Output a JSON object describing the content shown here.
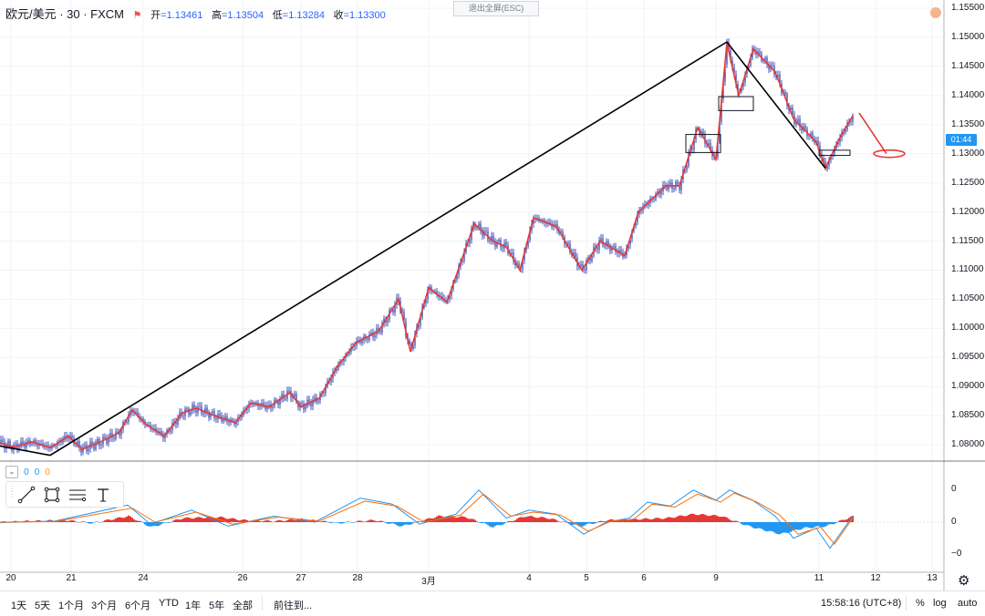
{
  "header": {
    "symbol": "欧元/美元 · 30 · FXCM",
    "flag": "⚑",
    "ohlc": [
      {
        "label": "开",
        "value": "=1.13461"
      },
      {
        "label": "高",
        "value": "=1.13504"
      },
      {
        "label": "低",
        "value": "=1.13284"
      },
      {
        "label": "收",
        "value": "=1.13300"
      }
    ]
  },
  "exit_fullscreen": "退出全屏(ESC)",
  "price_axis": [
    "1.15500",
    "1.15000",
    "1.14500",
    "1.14000",
    "1.13500",
    "1.13000",
    "1.12500",
    "1.12000",
    "1.11500",
    "1.11000",
    "1.10500",
    "1.10000",
    "1.09500",
    "1.09000",
    "1.08500",
    "1.08000"
  ],
  "price_badge": "01:44",
  "indicator": {
    "values": [
      "0",
      "0",
      "0"
    ],
    "axis": [
      "0",
      "0",
      "−0"
    ]
  },
  "toolbar_icons": [
    "trend-line-icon",
    "rectangle-icon",
    "fib-icon",
    "text-icon"
  ],
  "date_axis": [
    "20",
    "21",
    "24",
    "26",
    "27",
    "28",
    "3月",
    "4",
    "5",
    "6",
    "9",
    "11",
    "12",
    "13"
  ],
  "bottom_bar": {
    "ranges": [
      "1天",
      "5天",
      "1个月",
      "3个月",
      "6个月",
      "YTD",
      "1年",
      "5年",
      "全部"
    ],
    "goto": "前往到...",
    "time": "15:58:16 (UTC+8)",
    "percent": "%",
    "log": "log",
    "auto": "auto"
  },
  "colors": {
    "accent": "#2196f3",
    "zigzag": "#e53935",
    "trend": "#000000",
    "candles": "#3f51b5",
    "hist_pos": "#e53935",
    "hist_neg": "#2196f3"
  },
  "chart_data": {
    "type": "line",
    "title": "欧元/美元 · 30 · FXCM",
    "ylim": [
      1.0772,
      1.1564
    ],
    "y_ticks": [
      1.155,
      1.15,
      1.145,
      1.14,
      1.135,
      1.13,
      1.125,
      1.12,
      1.115,
      1.11,
      1.105,
      1.1,
      1.095,
      1.09,
      1.085,
      1.08
    ],
    "x_labels": [
      "20",
      "21",
      "24",
      "26",
      "27",
      "28",
      "3月",
      "4",
      "5",
      "6",
      "9",
      "11",
      "12",
      "13"
    ],
    "grid": true,
    "series": [
      {
        "values": [
          [
            0,
            1.0803
          ],
          [
            15,
            1.0796
          ],
          [
            35,
            1.0805
          ],
          [
            55,
            1.0795
          ],
          [
            75,
            1.0815
          ],
          [
            90,
            1.0792
          ],
          [
            110,
            1.0805
          ],
          [
            130,
            1.082
          ],
          [
            145,
            1.086
          ],
          [
            160,
            1.0835
          ],
          [
            180,
            1.0815
          ],
          [
            200,
            1.0855
          ],
          [
            215,
            1.0863
          ],
          [
            235,
            1.085
          ],
          [
            258,
            1.0838
          ],
          [
            275,
            1.0872
          ],
          [
            295,
            1.0865
          ],
          [
            318,
            1.089
          ],
          [
            330,
            1.0865
          ],
          [
            350,
            1.088
          ],
          [
            370,
            1.0935
          ],
          [
            390,
            1.0975
          ],
          [
            415,
            1.0995
          ],
          [
            437,
            1.105
          ],
          [
            450,
            1.096
          ],
          [
            470,
            1.107
          ],
          [
            490,
            1.1045
          ],
          [
            520,
            1.118
          ],
          [
            540,
            1.115
          ],
          [
            555,
            1.114
          ],
          [
            570,
            1.11
          ],
          [
            585,
            1.119
          ],
          [
            610,
            1.1175
          ],
          [
            638,
            1.11
          ],
          [
            658,
            1.115
          ],
          [
            685,
            1.1125
          ],
          [
            700,
            1.12
          ],
          [
            730,
            1.1245
          ],
          [
            745,
            1.1245
          ],
          [
            765,
            1.1345
          ],
          [
            785,
            1.129
          ],
          [
            797,
            1.149
          ],
          [
            810,
            1.14
          ],
          [
            826,
            1.148
          ],
          [
            850,
            1.144
          ],
          [
            870,
            1.136
          ],
          [
            895,
            1.132
          ],
          [
            905,
            1.1275
          ],
          [
            920,
            1.1325
          ],
          [
            935,
            1.1365
          ]
        ]
      },
      {
        "values": [
          [
            0,
            1.0798
          ],
          [
            55,
            1.0782
          ],
          [
            797,
            1.1492
          ],
          [
            905,
            1.1275
          ]
        ]
      }
    ],
    "annotations": [
      {
        "type": "rectangle",
        "x": [
          752,
          790
        ],
        "y": [
          1.1302,
          1.1333
        ]
      },
      {
        "type": "rectangle",
        "x": [
          788,
          826
        ],
        "y": [
          1.1374,
          1.1398
        ]
      },
      {
        "type": "rectangle",
        "x": [
          898,
          932
        ],
        "y": [
          1.1297,
          1.1306
        ]
      },
      {
        "type": "arrow",
        "from": [
          942,
          1.137
        ],
        "to": [
          992,
          1.13
        ]
      }
    ]
  },
  "macd": {
    "blue": [
      [
        0,
        -0.02
      ],
      [
        60,
        0.05
      ],
      [
        140,
        0.85
      ],
      [
        165,
        -0.1
      ],
      [
        210,
        0.6
      ],
      [
        250,
        -0.2
      ],
      [
        300,
        0.3
      ],
      [
        345,
        0.0
      ],
      [
        395,
        1.2
      ],
      [
        430,
        0.9
      ],
      [
        460,
        -0.1
      ],
      [
        500,
        0.4
      ],
      [
        525,
        1.6
      ],
      [
        555,
        0.2
      ],
      [
        580,
        0.6
      ],
      [
        610,
        0.4
      ],
      [
        640,
        -0.6
      ],
      [
        665,
        0.0
      ],
      [
        690,
        0.2
      ],
      [
        710,
        1.0
      ],
      [
        735,
        0.8
      ],
      [
        760,
        1.6
      ],
      [
        785,
        1.1
      ],
      [
        800,
        1.6
      ],
      [
        825,
        1.1
      ],
      [
        850,
        0.3
      ],
      [
        870,
        -0.8
      ],
      [
        895,
        -0.3
      ],
      [
        910,
        -1.3
      ],
      [
        935,
        0.3
      ]
    ],
    "orange": [
      [
        0,
        0.0
      ],
      [
        60,
        0.03
      ],
      [
        145,
        0.7
      ],
      [
        170,
        0.0
      ],
      [
        215,
        0.5
      ],
      [
        255,
        -0.1
      ],
      [
        305,
        0.25
      ],
      [
        350,
        0.05
      ],
      [
        400,
        1.05
      ],
      [
        435,
        0.8
      ],
      [
        465,
        0.0
      ],
      [
        505,
        0.35
      ],
      [
        530,
        1.4
      ],
      [
        560,
        0.3
      ],
      [
        585,
        0.5
      ],
      [
        615,
        0.35
      ],
      [
        645,
        -0.45
      ],
      [
        670,
        0.05
      ],
      [
        695,
        0.15
      ],
      [
        715,
        0.9
      ],
      [
        740,
        0.75
      ],
      [
        765,
        1.4
      ],
      [
        790,
        1.0
      ],
      [
        805,
        1.45
      ],
      [
        830,
        1.0
      ],
      [
        855,
        0.35
      ],
      [
        875,
        -0.6
      ],
      [
        900,
        -0.25
      ],
      [
        915,
        -1.1
      ],
      [
        935,
        0.2
      ]
    ],
    "hist": [
      [
        0,
        0.0
      ],
      [
        30,
        0.05
      ],
      [
        70,
        0.1
      ],
      [
        100,
        -0.05
      ],
      [
        140,
        0.3
      ],
      [
        165,
        -0.25
      ],
      [
        200,
        0.2
      ],
      [
        240,
        0.25
      ],
      [
        265,
        0.1
      ],
      [
        300,
        0.05
      ],
      [
        330,
        0.15
      ],
      [
        370,
        -0.05
      ],
      [
        410,
        0.1
      ],
      [
        440,
        -0.2
      ],
      [
        480,
        0.3
      ],
      [
        510,
        0.25
      ],
      [
        540,
        -0.25
      ],
      [
        575,
        0.3
      ],
      [
        600,
        0.2
      ],
      [
        635,
        -0.2
      ],
      [
        665,
        0.1
      ],
      [
        700,
        0.15
      ],
      [
        730,
        0.2
      ],
      [
        760,
        0.4
      ],
      [
        790,
        0.3
      ],
      [
        820,
        -0.2
      ],
      [
        855,
        -0.6
      ],
      [
        880,
        -0.3
      ],
      [
        905,
        -0.2
      ],
      [
        935,
        0.3
      ]
    ]
  }
}
